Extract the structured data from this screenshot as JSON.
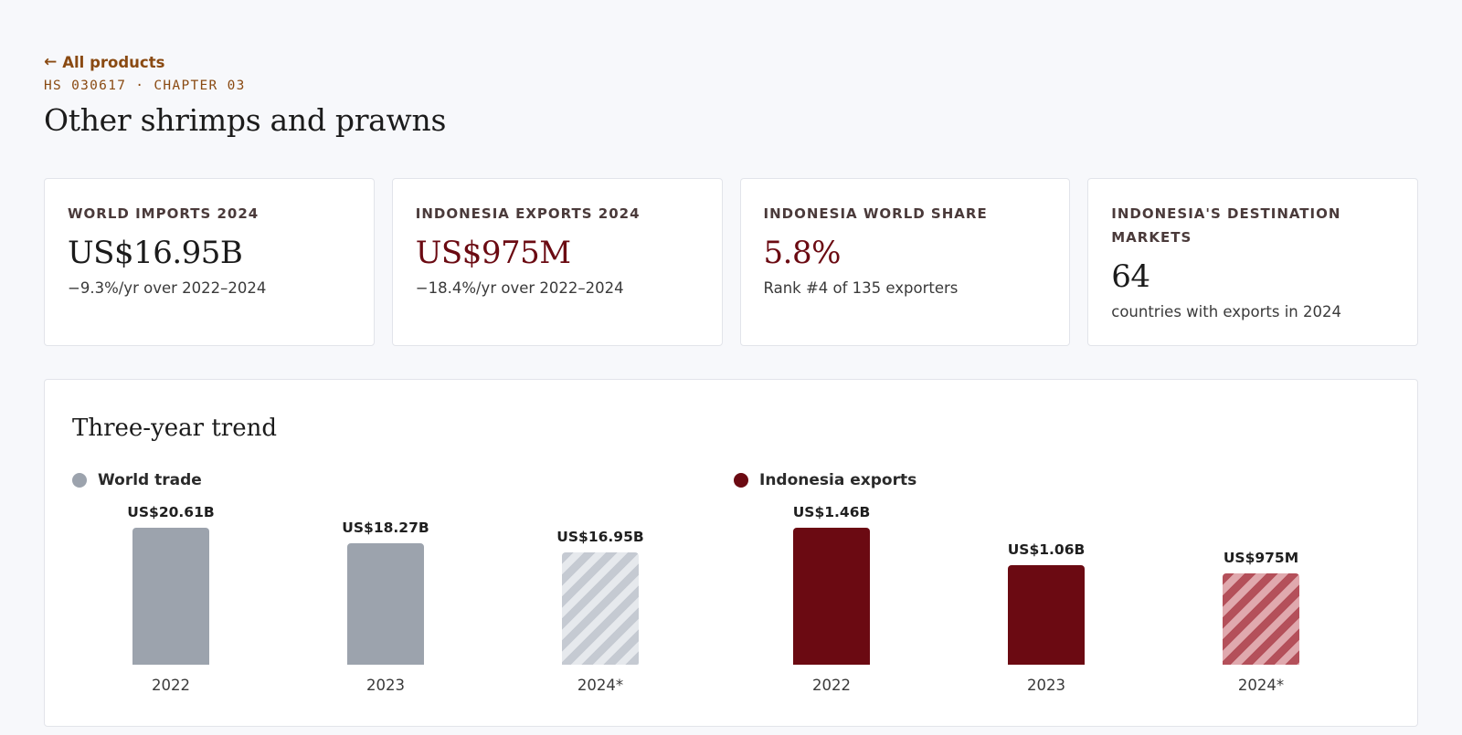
{
  "header": {
    "back_arrow_icon": "arrow-left-icon",
    "back_link": "All products",
    "eyebrow": "HS 030617 · CHAPTER 03",
    "title": "Other shrimps and prawns"
  },
  "kpis": [
    {
      "label": "WORLD IMPORTS 2024",
      "value": "US$16.95B",
      "sub": "−9.3%/yr over 2022–2024"
    },
    {
      "label": "INDONESIA EXPORTS 2024",
      "value": "US$975M",
      "sub": "−18.4%/yr over 2022–2024"
    },
    {
      "label": "INDONESIA WORLD SHARE",
      "value": "5.8%",
      "sub": "Rank #4 of 135 exporters"
    },
    {
      "label": "INDONESIA'S DESTINATION MARKETS",
      "value": "64",
      "sub": "countries with exports in 2024"
    }
  ],
  "colors": {
    "accent": "#6b0a12",
    "link": "#8a4a12",
    "world_bar": "#9ca3ad",
    "indonesia_bar": "#6b0a12"
  },
  "trend": {
    "title": "Three-year trend"
  },
  "chart_data": [
    {
      "type": "bar",
      "legend": "World trade",
      "categories": [
        "2022",
        "2023",
        "2024*"
      ],
      "values": [
        20.61,
        18.27,
        16.95
      ],
      "unit": "US$ billions",
      "value_labels": [
        "US$20.61B",
        "US$18.27B",
        "US$16.95B"
      ],
      "estimated": [
        false,
        false,
        true
      ]
    },
    {
      "type": "bar",
      "legend": "Indonesia exports",
      "categories": [
        "2022",
        "2023",
        "2024*"
      ],
      "values": [
        1.46,
        1.06,
        0.975
      ],
      "unit": "US$ billions",
      "value_labels": [
        "US$1.46B",
        "US$1.06B",
        "US$975M"
      ],
      "estimated": [
        false,
        false,
        true
      ]
    }
  ]
}
